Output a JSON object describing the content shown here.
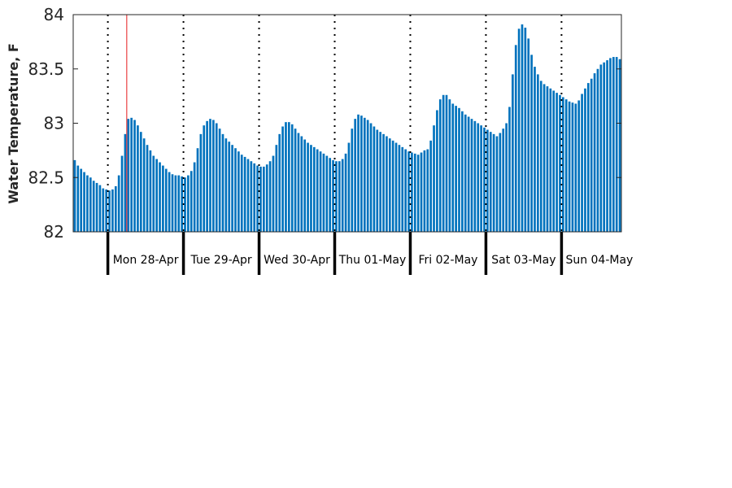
{
  "chart_data": {
    "type": "bar",
    "ylabel": "Water Temperature, F",
    "ylim": [
      82,
      84
    ],
    "yticks": [
      82,
      82.5,
      83,
      83.5,
      84
    ],
    "ytick_labels": [
      "82",
      "82.5",
      "83",
      "83.5",
      "84"
    ],
    "bar_color": "#0072bd",
    "marker_color": "#e41a1c",
    "marker_time": "Mon 28-Apr 06:00",
    "day_labels": [
      "Mon 28-Apr",
      "Tue 29-Apr",
      "Wed 30-Apr",
      "Thu 01-May",
      "Fri 02-May",
      "Sat 03-May",
      "Sun 04-May"
    ],
    "series": [
      {
        "x_start": "Sun 27-Apr 13:00",
        "x_step_hours": 1,
        "values": [
          82.66,
          82.61,
          82.58,
          82.55,
          82.52,
          82.5,
          82.47,
          82.45,
          82.43,
          82.4,
          82.39,
          82.38,
          82.39,
          82.42,
          82.52,
          82.7,
          82.9,
          83.04,
          83.05,
          83.03,
          82.98,
          82.92,
          82.86,
          82.8,
          82.75,
          82.7,
          82.67,
          82.64,
          82.61,
          82.58,
          82.55,
          82.53,
          82.52,
          82.52,
          82.51,
          82.5,
          82.52,
          82.56,
          82.64,
          82.77,
          82.9,
          82.98,
          83.02,
          83.04,
          83.03,
          83.0,
          82.95,
          82.9,
          82.86,
          82.83,
          82.8,
          82.77,
          82.74,
          82.71,
          82.69,
          82.67,
          82.65,
          82.63,
          82.61,
          82.6,
          82.6,
          82.62,
          82.65,
          82.7,
          82.8,
          82.9,
          82.97,
          83.01,
          83.01,
          82.99,
          82.95,
          82.91,
          82.88,
          82.85,
          82.82,
          82.8,
          82.78,
          82.76,
          82.74,
          82.72,
          82.7,
          82.68,
          82.66,
          82.65,
          82.65,
          82.67,
          82.72,
          82.82,
          82.95,
          83.04,
          83.08,
          83.07,
          83.05,
          83.03,
          83.0,
          82.97,
          82.94,
          82.92,
          82.9,
          82.88,
          82.86,
          82.84,
          82.82,
          82.8,
          82.78,
          82.76,
          82.74,
          82.73,
          82.72,
          82.71,
          82.73,
          82.75,
          82.76,
          82.84,
          82.98,
          83.12,
          83.22,
          83.26,
          83.26,
          83.22,
          83.18,
          83.16,
          83.14,
          83.11,
          83.08,
          83.06,
          83.04,
          83.02,
          83.0,
          82.98,
          82.96,
          82.94,
          82.92,
          82.9,
          82.88,
          82.91,
          82.95,
          83.0,
          83.15,
          83.45,
          83.72,
          83.87,
          83.91,
          83.88,
          83.78,
          83.63,
          83.52,
          83.45,
          83.39,
          83.36,
          83.34,
          83.32,
          83.3,
          83.28,
          83.26,
          83.24,
          83.22,
          83.2,
          83.19,
          83.18,
          83.21,
          83.27,
          83.32,
          83.37,
          83.41,
          83.46,
          83.5,
          83.54,
          83.56,
          83.58,
          83.6,
          83.61,
          83.61,
          83.59
        ]
      }
    ]
  }
}
